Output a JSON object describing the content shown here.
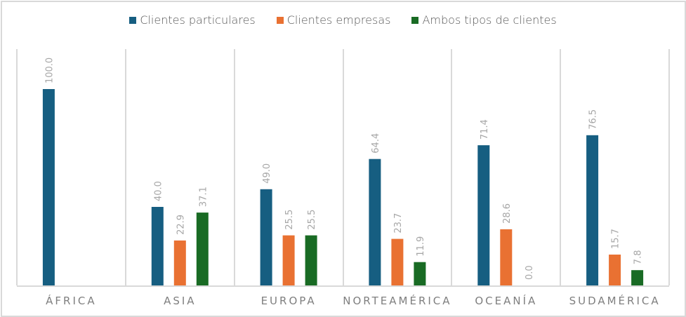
{
  "chart_data": {
    "type": "bar",
    "title": "",
    "xlabel": "",
    "ylabel": "",
    "ylim": [
      0,
      100
    ],
    "grid": "vertical category separators",
    "legend_position": "top",
    "categories": [
      "ÁFRICA",
      "ASIA",
      "EUROPA",
      "NORTEAMÉRICA",
      "OCEANÍA",
      "SUDAMÉRICA"
    ],
    "series": [
      {
        "name": "Clientes particulares",
        "color": "#165e81",
        "values": [
          100.0,
          40.0,
          49.0,
          64.4,
          71.4,
          76.5
        ],
        "labels": [
          "100.0",
          "40.0",
          "49.0",
          "64.4",
          "71.4",
          "76.5"
        ]
      },
      {
        "name": "Clientes empresas",
        "color": "#e97132",
        "values": [
          null,
          22.9,
          25.5,
          23.7,
          28.6,
          15.7
        ],
        "labels": [
          null,
          "22.9",
          "25.5",
          "23.7",
          "28.6",
          "15.7"
        ]
      },
      {
        "name": "Ambos tipos de clientes",
        "color": "#196b24",
        "values": [
          null,
          37.1,
          25.5,
          11.9,
          0.0,
          7.8
        ],
        "labels": [
          null,
          "37.1",
          "25.5",
          "11.9",
          "0.0",
          "7.8"
        ]
      }
    ]
  }
}
